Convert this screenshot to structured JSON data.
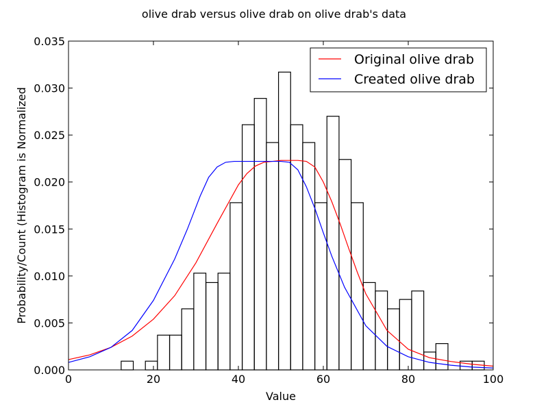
{
  "chart_data": {
    "type": "histogram-with-lines",
    "title": "olive drab versus olive drab on olive drab's data",
    "xlabel": "Value",
    "ylabel": "Probability/Count (Histogram is Normalized",
    "xlim": [
      0,
      100
    ],
    "ylim": [
      0,
      0.035
    ],
    "xticks": [
      "0",
      "20",
      "40",
      "60",
      "80",
      "100"
    ],
    "xtick_values": [
      0,
      20,
      40,
      60,
      80,
      100
    ],
    "yticks": [
      "0.000",
      "0.005",
      "0.010",
      "0.015",
      "0.020",
      "0.025",
      "0.030",
      "0.035"
    ],
    "ytick_values": [
      0,
      0.005,
      0.01,
      0.015,
      0.02,
      0.025,
      0.03,
      0.035
    ],
    "histogram": {
      "bin_width": 2.85,
      "bins": [
        {
          "x0": 12.4,
          "value": 0.00093
        },
        {
          "x0": 18.1,
          "value": 0.00093
        },
        {
          "x0": 20.95,
          "value": 0.0037
        },
        {
          "x0": 23.8,
          "value": 0.0037
        },
        {
          "x0": 26.65,
          "value": 0.0065
        },
        {
          "x0": 29.5,
          "value": 0.0103
        },
        {
          "x0": 32.35,
          "value": 0.0093
        },
        {
          "x0": 35.2,
          "value": 0.0103
        },
        {
          "x0": 38.05,
          "value": 0.0178
        },
        {
          "x0": 40.9,
          "value": 0.0261
        },
        {
          "x0": 43.75,
          "value": 0.0289
        },
        {
          "x0": 46.6,
          "value": 0.0242
        },
        {
          "x0": 49.45,
          "value": 0.0317
        },
        {
          "x0": 52.3,
          "value": 0.0261
        },
        {
          "x0": 55.15,
          "value": 0.0242
        },
        {
          "x0": 58.0,
          "value": 0.0178
        },
        {
          "x0": 60.85,
          "value": 0.027
        },
        {
          "x0": 63.7,
          "value": 0.0224
        },
        {
          "x0": 66.55,
          "value": 0.0178
        },
        {
          "x0": 69.4,
          "value": 0.0093
        },
        {
          "x0": 72.25,
          "value": 0.0084
        },
        {
          "x0": 75.1,
          "value": 0.0065
        },
        {
          "x0": 77.95,
          "value": 0.0075
        },
        {
          "x0": 80.8,
          "value": 0.0084
        },
        {
          "x0": 83.65,
          "value": 0.0019
        },
        {
          "x0": 86.5,
          "value": 0.0028
        },
        {
          "x0": 92.2,
          "value": 0.00093
        },
        {
          "x0": 95.05,
          "value": 0.00093
        }
      ]
    },
    "series": [
      {
        "name": "Original olive drab",
        "color": "#ff0000",
        "x": [
          0,
          5,
          10,
          15,
          20,
          25,
          30,
          35,
          40,
          42,
          44,
          46,
          48,
          50,
          52,
          54,
          56,
          58,
          60,
          62,
          64,
          66,
          68,
          70,
          75,
          80,
          85,
          90,
          95,
          100
        ],
        "y": [
          0.0011,
          0.0016,
          0.0024,
          0.0036,
          0.0054,
          0.0079,
          0.0114,
          0.0156,
          0.0197,
          0.0209,
          0.0217,
          0.0221,
          0.0222,
          0.0223,
          0.0223,
          0.0223,
          0.0222,
          0.0216,
          0.02,
          0.0179,
          0.0155,
          0.0129,
          0.0104,
          0.0081,
          0.0042,
          0.0022,
          0.0013,
          0.0009,
          0.0006,
          0.0004
        ]
      },
      {
        "name": "Created olive drab",
        "color": "#0000ff",
        "x": [
          0,
          5,
          10,
          15,
          20,
          25,
          28,
          31,
          33,
          35,
          37,
          39,
          41,
          45,
          50,
          52,
          54,
          56,
          58,
          60,
          62,
          65,
          70,
          75,
          80,
          85,
          90,
          95,
          100
        ],
        "y": [
          0.0008,
          0.0014,
          0.0024,
          0.0042,
          0.0074,
          0.0118,
          0.015,
          0.0185,
          0.0205,
          0.0216,
          0.0221,
          0.0222,
          0.0222,
          0.0222,
          0.0222,
          0.0221,
          0.0213,
          0.0195,
          0.0172,
          0.0146,
          0.0121,
          0.0088,
          0.0047,
          0.0025,
          0.0014,
          0.0008,
          0.0005,
          0.0003,
          0.0002
        ]
      }
    ],
    "legend": {
      "placement": "top-right"
    }
  }
}
